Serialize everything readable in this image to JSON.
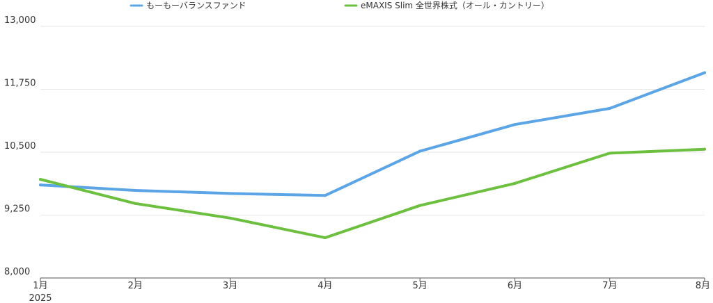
{
  "chart_data": {
    "type": "line",
    "categories": [
      "1月",
      "2月",
      "3月",
      "4月",
      "5月",
      "6月",
      "7月",
      "8月"
    ],
    "year_label": "2025",
    "series": [
      {
        "name": "もーもーバランスファンド",
        "color": "#5BA4E6",
        "values": [
          9850,
          9740,
          9680,
          9640,
          10520,
          11050,
          11370,
          12080
        ]
      },
      {
        "name": "eMAXIS Slim 全世界株式（オール・カントリー）",
        "color": "#6CBF3F",
        "values": [
          9960,
          9480,
          9190,
          8800,
          9440,
          9880,
          10480,
          10560
        ]
      }
    ],
    "ylim": [
      8000,
      13000
    ],
    "yticks": [
      8000,
      9250,
      10500,
      11750,
      13000
    ],
    "ytick_labels": [
      "8,000",
      "9,250",
      "10,500",
      "11,750",
      "13,000"
    ],
    "grid": true,
    "legend_position": "top"
  }
}
